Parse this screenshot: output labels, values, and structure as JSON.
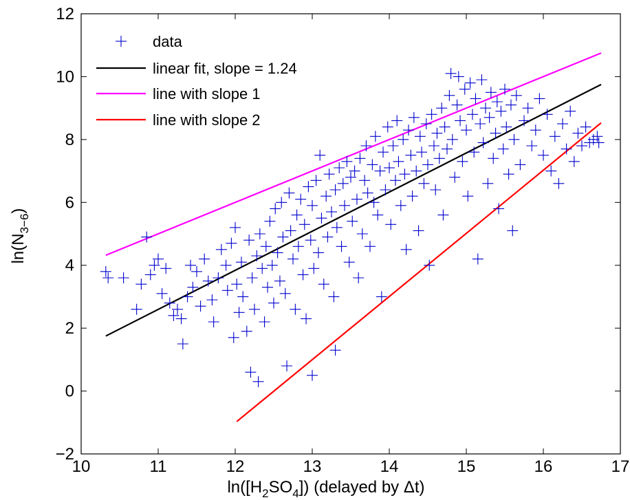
{
  "chart_data": {
    "type": "scatter",
    "xlabel_parts": [
      "ln([H",
      "2",
      "SO",
      "4",
      "]) (delayed by Δt)"
    ],
    "ylabel_parts": [
      "ln(N",
      "3−6",
      ")"
    ],
    "xlim": [
      10,
      17
    ],
    "ylim": [
      -2,
      12
    ],
    "x_ticks": [
      "10",
      "11",
      "12",
      "13",
      "14",
      "15",
      "16",
      "17"
    ],
    "y_ticks": [
      "−2",
      "0",
      "2",
      "4",
      "6",
      "8",
      "10",
      "12"
    ],
    "legend_position": "top-left",
    "colors": {
      "data": "#0000cc",
      "fit": "#000000",
      "slope1": "#ff00ff",
      "slope2": "#ff0000"
    },
    "series": [
      {
        "name": "data",
        "kind": "points",
        "marker": "+",
        "points": [
          [
            10.32,
            3.8
          ],
          [
            10.35,
            3.6
          ],
          [
            10.55,
            3.6
          ],
          [
            10.72,
            2.6
          ],
          [
            10.78,
            3.4
          ],
          [
            10.85,
            4.9
          ],
          [
            10.9,
            3.7
          ],
          [
            10.95,
            4.0
          ],
          [
            11.0,
            4.2
          ],
          [
            11.05,
            3.1
          ],
          [
            11.1,
            3.9
          ],
          [
            11.15,
            2.8
          ],
          [
            11.2,
            2.4
          ],
          [
            11.25,
            2.6
          ],
          [
            11.3,
            2.3
          ],
          [
            11.32,
            1.5
          ],
          [
            11.38,
            3.0
          ],
          [
            11.42,
            4.0
          ],
          [
            11.45,
            3.3
          ],
          [
            11.5,
            3.8
          ],
          [
            11.55,
            2.7
          ],
          [
            11.6,
            4.2
          ],
          [
            11.65,
            3.5
          ],
          [
            11.7,
            2.9
          ],
          [
            11.72,
            2.2
          ],
          [
            11.78,
            3.6
          ],
          [
            11.82,
            4.5
          ],
          [
            11.88,
            4.0
          ],
          [
            11.9,
            3.2
          ],
          [
            11.95,
            4.7
          ],
          [
            11.98,
            1.7
          ],
          [
            12.0,
            5.2
          ],
          [
            12.02,
            3.4
          ],
          [
            12.05,
            2.5
          ],
          [
            12.08,
            4.1
          ],
          [
            12.1,
            3.0
          ],
          [
            12.15,
            1.9
          ],
          [
            12.18,
            4.8
          ],
          [
            12.2,
            0.6
          ],
          [
            12.22,
            3.6
          ],
          [
            12.25,
            2.6
          ],
          [
            12.28,
            4.3
          ],
          [
            12.3,
            0.3
          ],
          [
            12.32,
            5.0
          ],
          [
            12.35,
            3.9
          ],
          [
            12.38,
            2.2
          ],
          [
            12.4,
            4.6
          ],
          [
            12.42,
            3.3
          ],
          [
            12.45,
            5.4
          ],
          [
            12.48,
            4.0
          ],
          [
            12.5,
            2.8
          ],
          [
            12.52,
            5.8
          ],
          [
            12.55,
            4.4
          ],
          [
            12.58,
            3.5
          ],
          [
            12.6,
            6.0
          ],
          [
            12.62,
            4.9
          ],
          [
            12.65,
            3.1
          ],
          [
            12.67,
            0.8
          ],
          [
            12.7,
            6.3
          ],
          [
            12.72,
            5.1
          ],
          [
            12.75,
            4.2
          ],
          [
            12.78,
            2.6
          ],
          [
            12.8,
            5.6
          ],
          [
            12.82,
            4.6
          ],
          [
            12.85,
            6.1
          ],
          [
            12.88,
            3.7
          ],
          [
            12.9,
            5.3
          ],
          [
            12.92,
            2.3
          ],
          [
            12.95,
            6.5
          ],
          [
            12.98,
            4.8
          ],
          [
            13.0,
            0.5
          ],
          [
            13.0,
            5.9
          ],
          [
            13.02,
            3.9
          ],
          [
            13.05,
            6.7
          ],
          [
            13.08,
            4.4
          ],
          [
            13.1,
            7.5
          ],
          [
            13.12,
            5.5
          ],
          [
            13.15,
            3.4
          ],
          [
            13.18,
            6.2
          ],
          [
            13.2,
            4.9
          ],
          [
            13.22,
            6.9
          ],
          [
            13.25,
            5.7
          ],
          [
            13.28,
            3.0
          ],
          [
            13.3,
            6.4
          ],
          [
            13.3,
            1.3
          ],
          [
            13.32,
            5.2
          ],
          [
            13.35,
            7.1
          ],
          [
            13.38,
            4.6
          ],
          [
            13.4,
            6.6
          ],
          [
            13.42,
            5.9
          ],
          [
            13.45,
            7.3
          ],
          [
            13.48,
            4.1
          ],
          [
            13.5,
            6.8
          ],
          [
            13.52,
            5.4
          ],
          [
            13.55,
            7.0
          ],
          [
            13.58,
            6.1
          ],
          [
            13.6,
            3.6
          ],
          [
            13.62,
            7.4
          ],
          [
            13.65,
            5.0
          ],
          [
            13.68,
            6.7
          ],
          [
            13.7,
            7.8
          ],
          [
            13.72,
            6.3
          ],
          [
            13.75,
            4.6
          ],
          [
            13.78,
            7.2
          ],
          [
            13.8,
            6.0
          ],
          [
            13.82,
            8.1
          ],
          [
            13.85,
            5.6
          ],
          [
            13.88,
            7.0
          ],
          [
            13.9,
            3.0
          ],
          [
            13.92,
            7.6
          ],
          [
            13.95,
            6.4
          ],
          [
            13.98,
            8.4
          ],
          [
            14.0,
            7.1
          ],
          [
            14.02,
            5.3
          ],
          [
            14.05,
            7.8
          ],
          [
            14.08,
            6.7
          ],
          [
            14.1,
            8.6
          ],
          [
            14.12,
            7.3
          ],
          [
            14.15,
            5.9
          ],
          [
            14.18,
            8.0
          ],
          [
            14.2,
            6.9
          ],
          [
            14.22,
            4.5
          ],
          [
            14.25,
            8.3
          ],
          [
            14.28,
            7.5
          ],
          [
            14.3,
            6.2
          ],
          [
            14.32,
            8.7
          ],
          [
            14.35,
            7.0
          ],
          [
            14.38,
            5.1
          ],
          [
            14.4,
            8.1
          ],
          [
            14.42,
            7.6
          ],
          [
            14.45,
            6.6
          ],
          [
            14.48,
            8.5
          ],
          [
            14.5,
            7.2
          ],
          [
            14.52,
            4.0
          ],
          [
            14.55,
            8.8
          ],
          [
            14.58,
            7.8
          ],
          [
            14.6,
            6.4
          ],
          [
            14.62,
            8.2
          ],
          [
            14.65,
            7.4
          ],
          [
            14.68,
            9.0
          ],
          [
            14.7,
            5.6
          ],
          [
            14.72,
            8.4
          ],
          [
            14.75,
            7.7
          ],
          [
            14.78,
            9.4
          ],
          [
            14.8,
            10.1
          ],
          [
            14.82,
            8.0
          ],
          [
            14.85,
            6.8
          ],
          [
            14.88,
            9.1
          ],
          [
            14.9,
            10.0
          ],
          [
            14.92,
            8.6
          ],
          [
            14.95,
            7.3
          ],
          [
            14.98,
            9.6
          ],
          [
            15.0,
            8.3
          ],
          [
            15.02,
            6.2
          ],
          [
            15.05,
            9.8
          ],
          [
            15.08,
            8.8
          ],
          [
            15.1,
            7.6
          ],
          [
            15.12,
            9.3
          ],
          [
            15.15,
            4.2
          ],
          [
            15.18,
            8.5
          ],
          [
            15.2,
            9.9
          ],
          [
            15.22,
            7.9
          ],
          [
            15.25,
            9.0
          ],
          [
            15.28,
            6.6
          ],
          [
            15.3,
            8.7
          ],
          [
            15.32,
            9.5
          ],
          [
            15.35,
            7.4
          ],
          [
            15.38,
            8.2
          ],
          [
            15.4,
            9.2
          ],
          [
            15.42,
            5.8
          ],
          [
            15.45,
            8.9
          ],
          [
            15.48,
            7.7
          ],
          [
            15.5,
            9.6
          ],
          [
            15.52,
            8.4
          ],
          [
            15.55,
            6.9
          ],
          [
            15.58,
            9.1
          ],
          [
            15.6,
            5.1
          ],
          [
            15.62,
            8.0
          ],
          [
            15.65,
            9.4
          ],
          [
            15.7,
            7.2
          ],
          [
            15.75,
            8.6
          ],
          [
            15.8,
            9.0
          ],
          [
            15.85,
            7.8
          ],
          [
            15.9,
            8.3
          ],
          [
            15.95,
            9.3
          ],
          [
            16.0,
            7.5
          ],
          [
            16.05,
            8.8
          ],
          [
            16.1,
            7.0
          ],
          [
            16.15,
            8.1
          ],
          [
            16.2,
            6.6
          ],
          [
            16.25,
            8.5
          ],
          [
            16.3,
            7.7
          ],
          [
            16.35,
            8.9
          ],
          [
            16.4,
            7.3
          ],
          [
            16.45,
            8.2
          ],
          [
            16.5,
            7.8
          ],
          [
            16.55,
            8.4
          ],
          [
            16.6,
            7.9
          ],
          [
            16.65,
            8.0
          ],
          [
            16.7,
            8.1
          ],
          [
            16.72,
            7.9
          ]
        ]
      },
      {
        "name": "linear fit, slope = 1.24",
        "kind": "line",
        "x": [
          10.32,
          16.75
        ],
        "y": [
          1.75,
          9.75
        ]
      },
      {
        "name": "line with slope 1",
        "kind": "line",
        "x": [
          10.32,
          16.75
        ],
        "y": [
          4.32,
          10.75
        ]
      },
      {
        "name": "line with slope 2",
        "kind": "line",
        "x": [
          12.02,
          16.75
        ],
        "y": [
          -0.97,
          8.53
        ]
      }
    ]
  }
}
